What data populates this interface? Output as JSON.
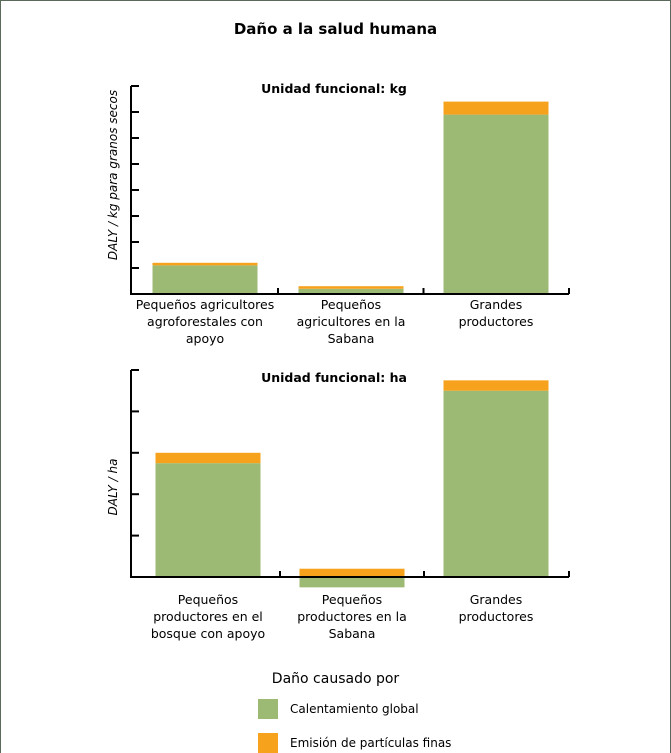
{
  "title": "Daño a la salud humana",
  "colors": {
    "calentamiento": "#9dba74",
    "particulas": "#f6a21c",
    "axis": "#000000"
  },
  "legend": {
    "title": "Daño causado por",
    "items": [
      {
        "label": "Calentamiento global",
        "color": "#9dba74"
      },
      {
        "label": "Emisión de partículas finas",
        "color": "#f6a21c"
      }
    ]
  },
  "chart_data": [
    {
      "type": "bar",
      "stacked": true,
      "title": "Unidad funcional: kg",
      "ylabel": "DALY / kg para granos secos",
      "xlabel": "",
      "ylim": [
        0,
        8
      ],
      "yticks": 8,
      "tick_labels_shown": false,
      "categories": [
        "Pequeños agricultores agroforestales con apoyo",
        "Pequeños agricultores en la Sabana",
        "Grandes productores"
      ],
      "category_lines": [
        [
          "Pequeños agricultores",
          "agroforestales con",
          "apoyo"
        ],
        [
          "Pequeños",
          "agricultores en la",
          "Sabana"
        ],
        [
          "Grandes",
          "productores"
        ]
      ],
      "series": [
        {
          "name": "Calentamiento global",
          "values": [
            1.1,
            0.2,
            6.9
          ]
        },
        {
          "name": "Emisión de partículas finas",
          "values": [
            0.1,
            0.1,
            0.5
          ]
        }
      ]
    },
    {
      "type": "bar",
      "stacked": true,
      "title": "Unidad funcional: ha",
      "ylabel": "DALY / ha",
      "xlabel": "",
      "ylim": [
        0,
        5
      ],
      "yticks": 5,
      "tick_labels_shown": false,
      "categories": [
        "Pequeños productores en el bosque con apoyo",
        "Pequeños productores en la Sabana",
        "Grandes productores"
      ],
      "category_lines": [
        [
          "Pequeños",
          "productores en el",
          "bosque con apoyo"
        ],
        [
          "Pequeños",
          "productores en la",
          "Sabana"
        ],
        [
          "Grandes",
          "productores"
        ]
      ],
      "series": [
        {
          "name": "Calentamiento global",
          "values": [
            2.75,
            -0.25,
            4.5
          ]
        },
        {
          "name": "Emisión de partículas finas",
          "values": [
            0.25,
            0.2,
            0.25
          ]
        }
      ]
    }
  ]
}
